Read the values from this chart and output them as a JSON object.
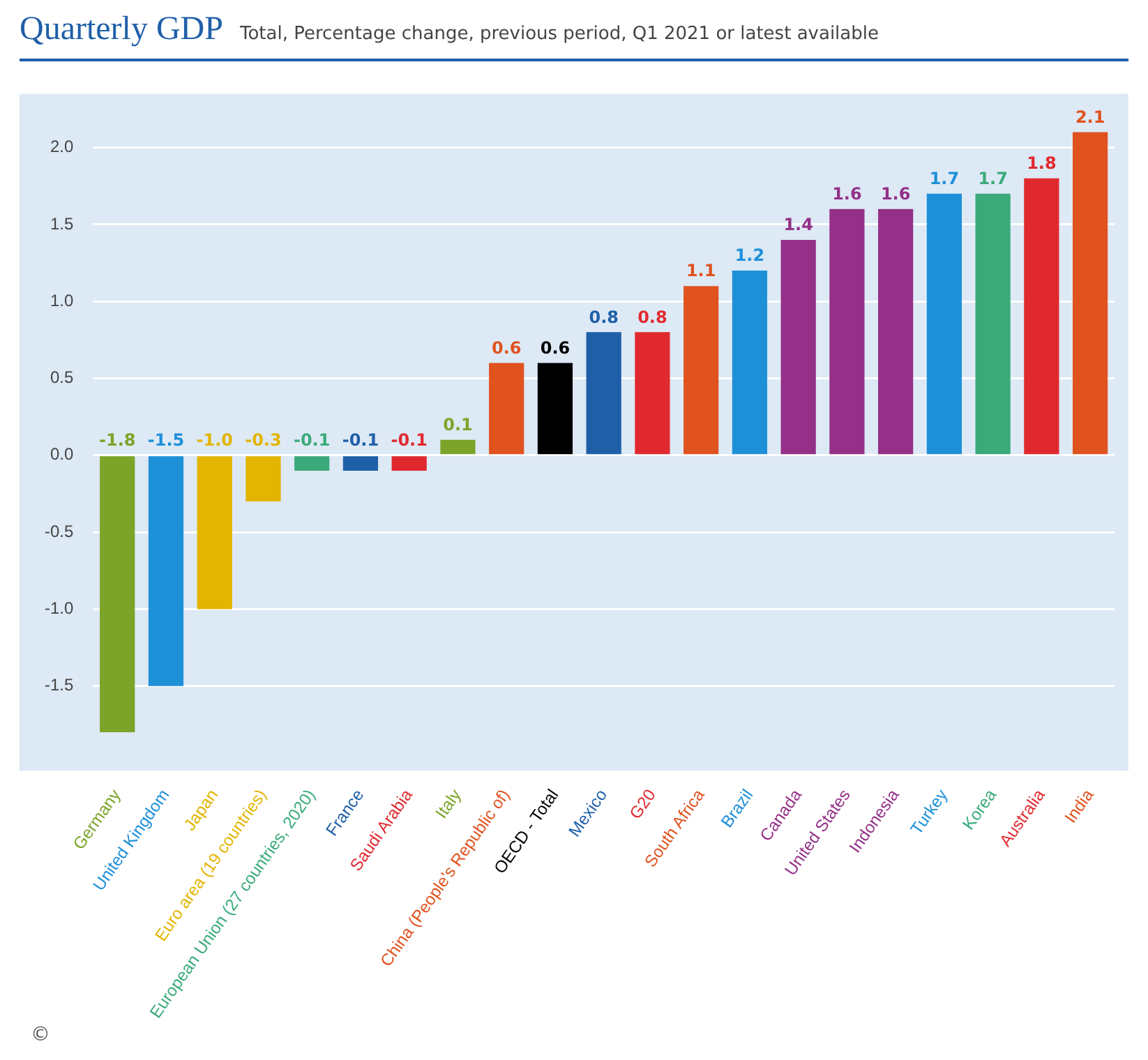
{
  "chart_data": {
    "type": "bar",
    "title": "Quarterly GDP",
    "subtitle": "Total, Percentage change, previous period, Q1 2021 or latest available",
    "categories": [
      "Germany",
      "United Kingdom",
      "Japan",
      "Euro area (19 countries)",
      "European Union (27 countries, 2020)",
      "France",
      "Saudi Arabia",
      "Italy",
      "China (People's Republic of)",
      "OECD - Total",
      "Mexico",
      "G20",
      "South Africa",
      "Brazil",
      "Canada",
      "United States",
      "Indonesia",
      "Turkey",
      "Korea",
      "Australia",
      "India"
    ],
    "values": [
      -1.8,
      -1.5,
      -1.0,
      -0.3,
      -0.1,
      -0.1,
      -0.1,
      0.1,
      0.6,
      0.6,
      0.8,
      0.8,
      1.1,
      1.2,
      1.4,
      1.6,
      1.6,
      1.7,
      1.7,
      1.8,
      2.1
    ],
    "colors": [
      "#7ba428",
      "#1e90d8",
      "#e3b400",
      "#e3b400",
      "#3aaa7a",
      "#1f5fa8",
      "#e0292f",
      "#7ba428",
      "#e0521e",
      "#000000",
      "#1f5fa8",
      "#e0292f",
      "#e0521e",
      "#1e90d8",
      "#943088",
      "#943088",
      "#943088",
      "#1e90d8",
      "#3aaa7a",
      "#e0292f",
      "#e0521e"
    ],
    "ylim": [
      -2.05,
      2.35
    ],
    "yticks": [
      {
        "value": -1.5,
        "label": "-1.5"
      },
      {
        "value": -1,
        "label": "-1.0"
      },
      {
        "value": -0.5,
        "label": "-0.5"
      },
      {
        "value": 0,
        "label": "0.0"
      },
      {
        "value": 0.5,
        "label": "0.5"
      },
      {
        "value": 1,
        "label": "1.0"
      },
      {
        "value": 1.5,
        "label": "1.5"
      },
      {
        "value": 2,
        "label": "2.0"
      }
    ],
    "value_labels": [
      "-1.8",
      "-1.5",
      "-1.0",
      "-0.3",
      "-0.1",
      "-0.1",
      "-0.1",
      "0.1",
      "0.6",
      "0.6",
      "0.8",
      "0.8",
      "1.1",
      "1.2",
      "1.4",
      "1.6",
      "1.6",
      "1.7",
      "1.7",
      "1.8",
      "2.1"
    ],
    "grid": "y",
    "legend": false,
    "annotations": [
      "©"
    ]
  }
}
